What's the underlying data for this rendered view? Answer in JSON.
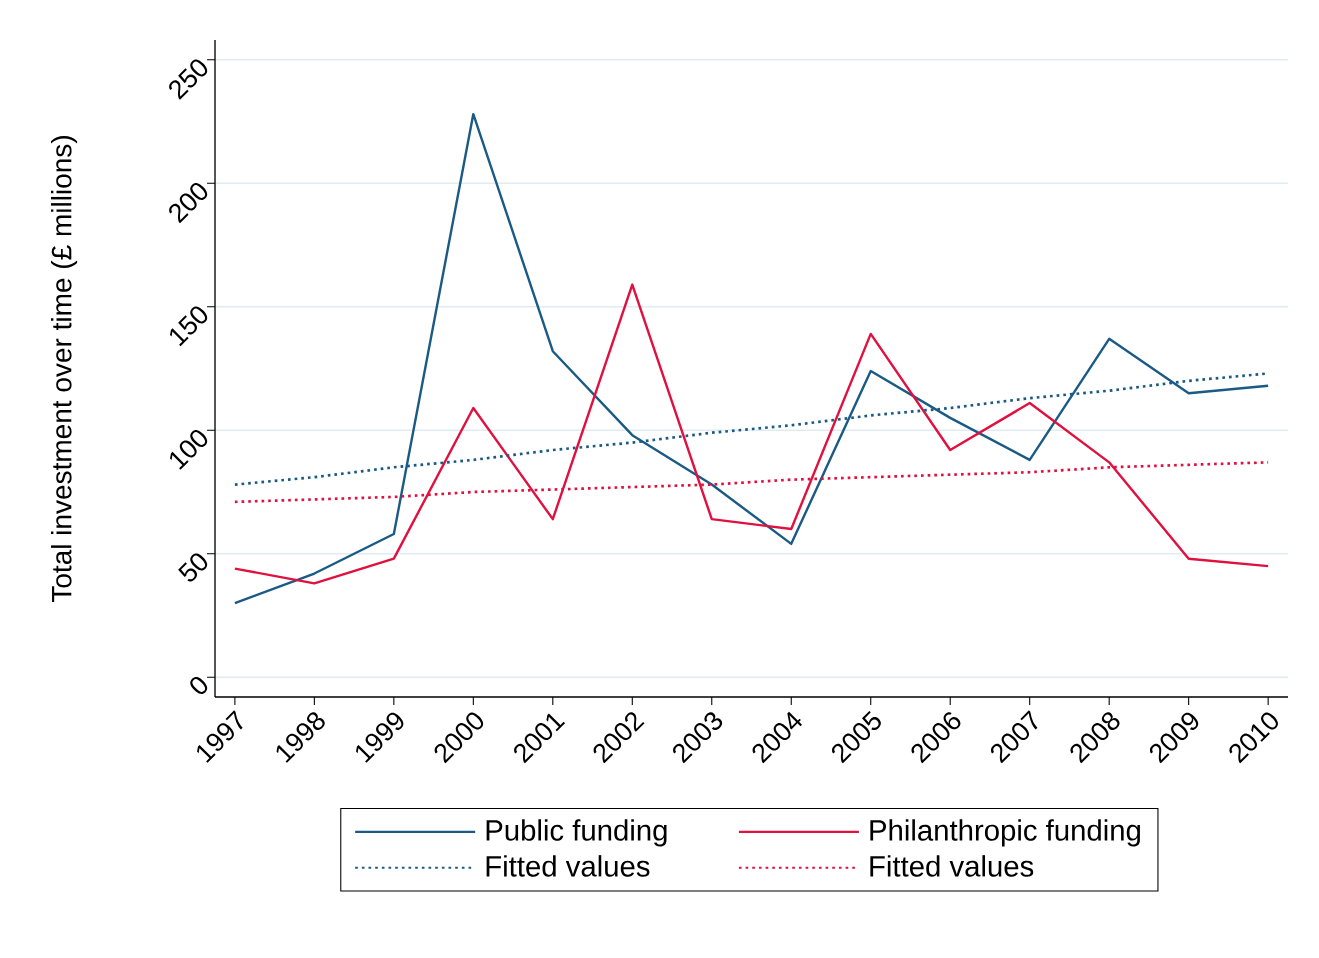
{
  "chart_data": {
    "type": "line",
    "ylabel": "Total investment over time (£ millions)",
    "x": [
      1997,
      1998,
      1999,
      2000,
      2001,
      2002,
      2003,
      2004,
      2005,
      2006,
      2007,
      2008,
      2009,
      2010
    ],
    "series": [
      {
        "name": "Public funding",
        "color": "#1a5a85",
        "line_style": "solid",
        "values": [
          30,
          42,
          58,
          228,
          132,
          98,
          78,
          54,
          124,
          105,
          88,
          137,
          115,
          118
        ]
      },
      {
        "name": "Philanthropic funding",
        "color": "#e0103f",
        "line_style": "solid",
        "values": [
          44,
          38,
          48,
          109,
          64,
          159,
          64,
          60,
          139,
          92,
          111,
          87,
          48,
          45
        ]
      },
      {
        "name": "Fitted values",
        "color": "#1a5a85",
        "type": "line",
        "line_style": "dotted",
        "values": [
          78,
          81,
          85,
          88,
          92,
          95,
          99,
          102,
          106,
          109,
          113,
          116,
          120,
          123
        ]
      },
      {
        "name": "Fitted values",
        "color": "#e0103f",
        "type": "line",
        "line_style": "dotted",
        "values": [
          71,
          72,
          73,
          75,
          76,
          77,
          78,
          80,
          81,
          82,
          83,
          85,
          86,
          87
        ]
      }
    ],
    "xlim": [
      1996.75,
      2010.25
    ],
    "xticks": [
      1997,
      1998,
      1999,
      2000,
      2001,
      2002,
      2003,
      2004,
      2005,
      2006,
      2007,
      2008,
      2009,
      2010
    ],
    "ylim": [
      -8,
      258
    ],
    "yticks": [
      0,
      50,
      100,
      150,
      200,
      250
    ],
    "grid": "y",
    "legend": "bottom"
  }
}
